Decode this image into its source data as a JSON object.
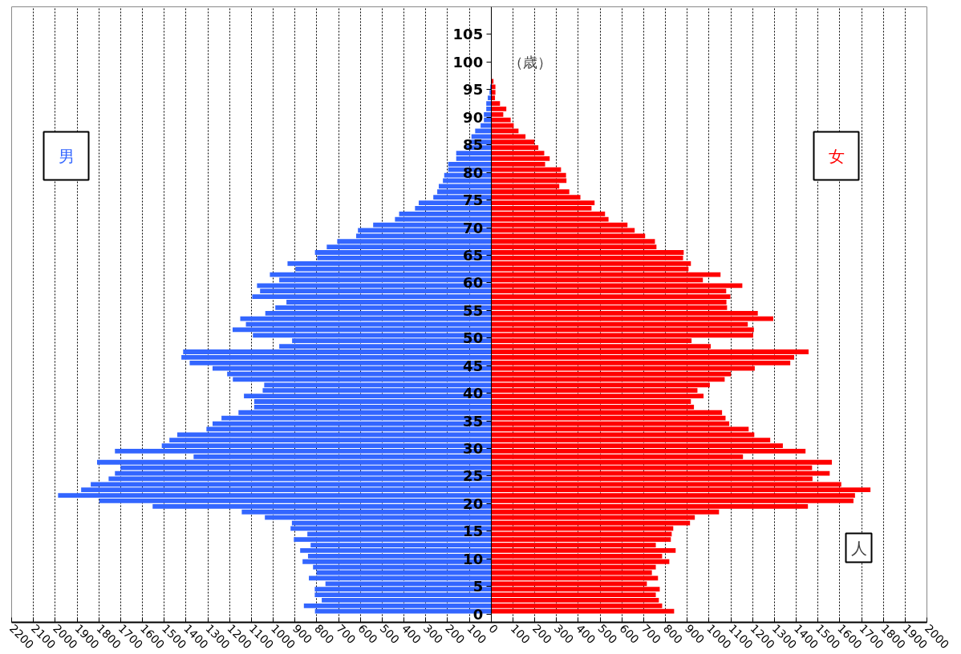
{
  "chart_data": {
    "type": "bar",
    "orientation": "horizontal",
    "xlabel": "人",
    "ylabel": "（歳）",
    "x": [
      0,
      1,
      2,
      3,
      4,
      5,
      6,
      7,
      8,
      9,
      10,
      11,
      12,
      13,
      14,
      15,
      16,
      17,
      18,
      19,
      20,
      21,
      22,
      23,
      24,
      25,
      26,
      27,
      28,
      29,
      30,
      31,
      32,
      33,
      34,
      35,
      36,
      37,
      38,
      39,
      40,
      41,
      42,
      43,
      44,
      45,
      46,
      47,
      48,
      49,
      50,
      51,
      52,
      53,
      54,
      55,
      56,
      57,
      58,
      59,
      60,
      61,
      62,
      63,
      64,
      65,
      66,
      67,
      68,
      69,
      70,
      71,
      72,
      73,
      74,
      75,
      76,
      77,
      78,
      79,
      80,
      81,
      82,
      83,
      84,
      85,
      86,
      87,
      88,
      89,
      90,
      91,
      92,
      93,
      94,
      95,
      96
    ],
    "series": [
      {
        "name": "男",
        "color": "#3366ff",
        "values": [
          -808,
          -859,
          -777,
          -809,
          -809,
          -760,
          -836,
          -801,
          -817,
          -865,
          -840,
          -876,
          -828,
          -905,
          -843,
          -920,
          -914,
          -1038,
          -1144,
          -1553,
          -1798,
          -1987,
          -1881,
          -1837,
          -1755,
          -1726,
          -1700,
          -1808,
          -1365,
          -1726,
          -1511,
          -1476,
          -1440,
          -1306,
          -1278,
          -1237,
          -1159,
          -1087,
          -1087,
          -1134,
          -1048,
          -1041,
          -1185,
          -1211,
          -1278,
          -1383,
          -1421,
          -1413,
          -972,
          -913,
          -1093,
          -1186,
          -1125,
          -1151,
          -1036,
          -990,
          -939,
          -1096,
          -1060,
          -1074,
          -972,
          -1015,
          -898,
          -934,
          -798,
          -808,
          -754,
          -706,
          -619,
          -611,
          -541,
          -441,
          -422,
          -349,
          -332,
          -265,
          -247,
          -240,
          -221,
          -215,
          -197,
          -197,
          -160,
          -160,
          -114,
          -95,
          -90,
          -73,
          -48,
          -33,
          -33,
          -22,
          -22,
          -15,
          -7,
          -4,
          null
        ]
      },
      {
        "name": "女",
        "color": "#ff0000",
        "values": [
          840,
          785,
          770,
          756,
          774,
          715,
          766,
          738,
          756,
          818,
          785,
          847,
          756,
          825,
          829,
          836,
          913,
          935,
          1046,
          1454,
          1663,
          1670,
          1741,
          1607,
          1475,
          1554,
          1473,
          1564,
          1156,
          1443,
          1339,
          1281,
          1208,
          1182,
          1093,
          1076,
          1060,
          931,
          917,
          975,
          947,
          1004,
          1072,
          1101,
          1210,
          1373,
          1391,
          1457,
          1008,
          920,
          1203,
          1206,
          1178,
          1295,
          1224,
          1083,
          1080,
          1098,
          1079,
          1153,
          972,
          1053,
          906,
          917,
          881,
          884,
          759,
          752,
          707,
          659,
          626,
          539,
          523,
          461,
          475,
          410,
          359,
          313,
          346,
          344,
          321,
          248,
          269,
          244,
          217,
          199,
          158,
          126,
          104,
          90,
          56,
          70,
          41,
          18,
          20,
          20,
          11
        ]
      }
    ],
    "xlim": [
      -2200,
      2000
    ],
    "xticks": [
      {
        "value": -2200,
        "label": "2200"
      },
      {
        "value": -2100,
        "label": "2100"
      },
      {
        "value": -2000,
        "label": "2000"
      },
      {
        "value": -1900,
        "label": "1900"
      },
      {
        "value": -1800,
        "label": "1800"
      },
      {
        "value": -1700,
        "label": "1700"
      },
      {
        "value": -1600,
        "label": "1600"
      },
      {
        "value": -1500,
        "label": "1500"
      },
      {
        "value": -1400,
        "label": "1400"
      },
      {
        "value": -1300,
        "label": "1300"
      },
      {
        "value": -1200,
        "label": "1200"
      },
      {
        "value": -1100,
        "label": "1100"
      },
      {
        "value": -1000,
        "label": "1000"
      },
      {
        "value": -900,
        "label": "900"
      },
      {
        "value": -800,
        "label": "800"
      },
      {
        "value": -700,
        "label": "700"
      },
      {
        "value": -600,
        "label": "600"
      },
      {
        "value": -500,
        "label": "500"
      },
      {
        "value": -400,
        "label": "400"
      },
      {
        "value": -300,
        "label": "300"
      },
      {
        "value": -200,
        "label": "200"
      },
      {
        "value": -100,
        "label": "100"
      },
      0,
      100,
      200,
      300,
      400,
      500,
      600,
      700,
      800,
      900,
      1000,
      1100,
      1200,
      1300,
      1400,
      1500,
      1600,
      1700,
      1800,
      1900,
      2000
    ],
    "ylim": [
      -1.5,
      110
    ],
    "stacked": true,
    "yticks": [
      0,
      5,
      10,
      15,
      20,
      25,
      30,
      35,
      40,
      45,
      50,
      55,
      60,
      65,
      70,
      75,
      80,
      85,
      90,
      95,
      100,
      105
    ],
    "grid": "x"
  }
}
